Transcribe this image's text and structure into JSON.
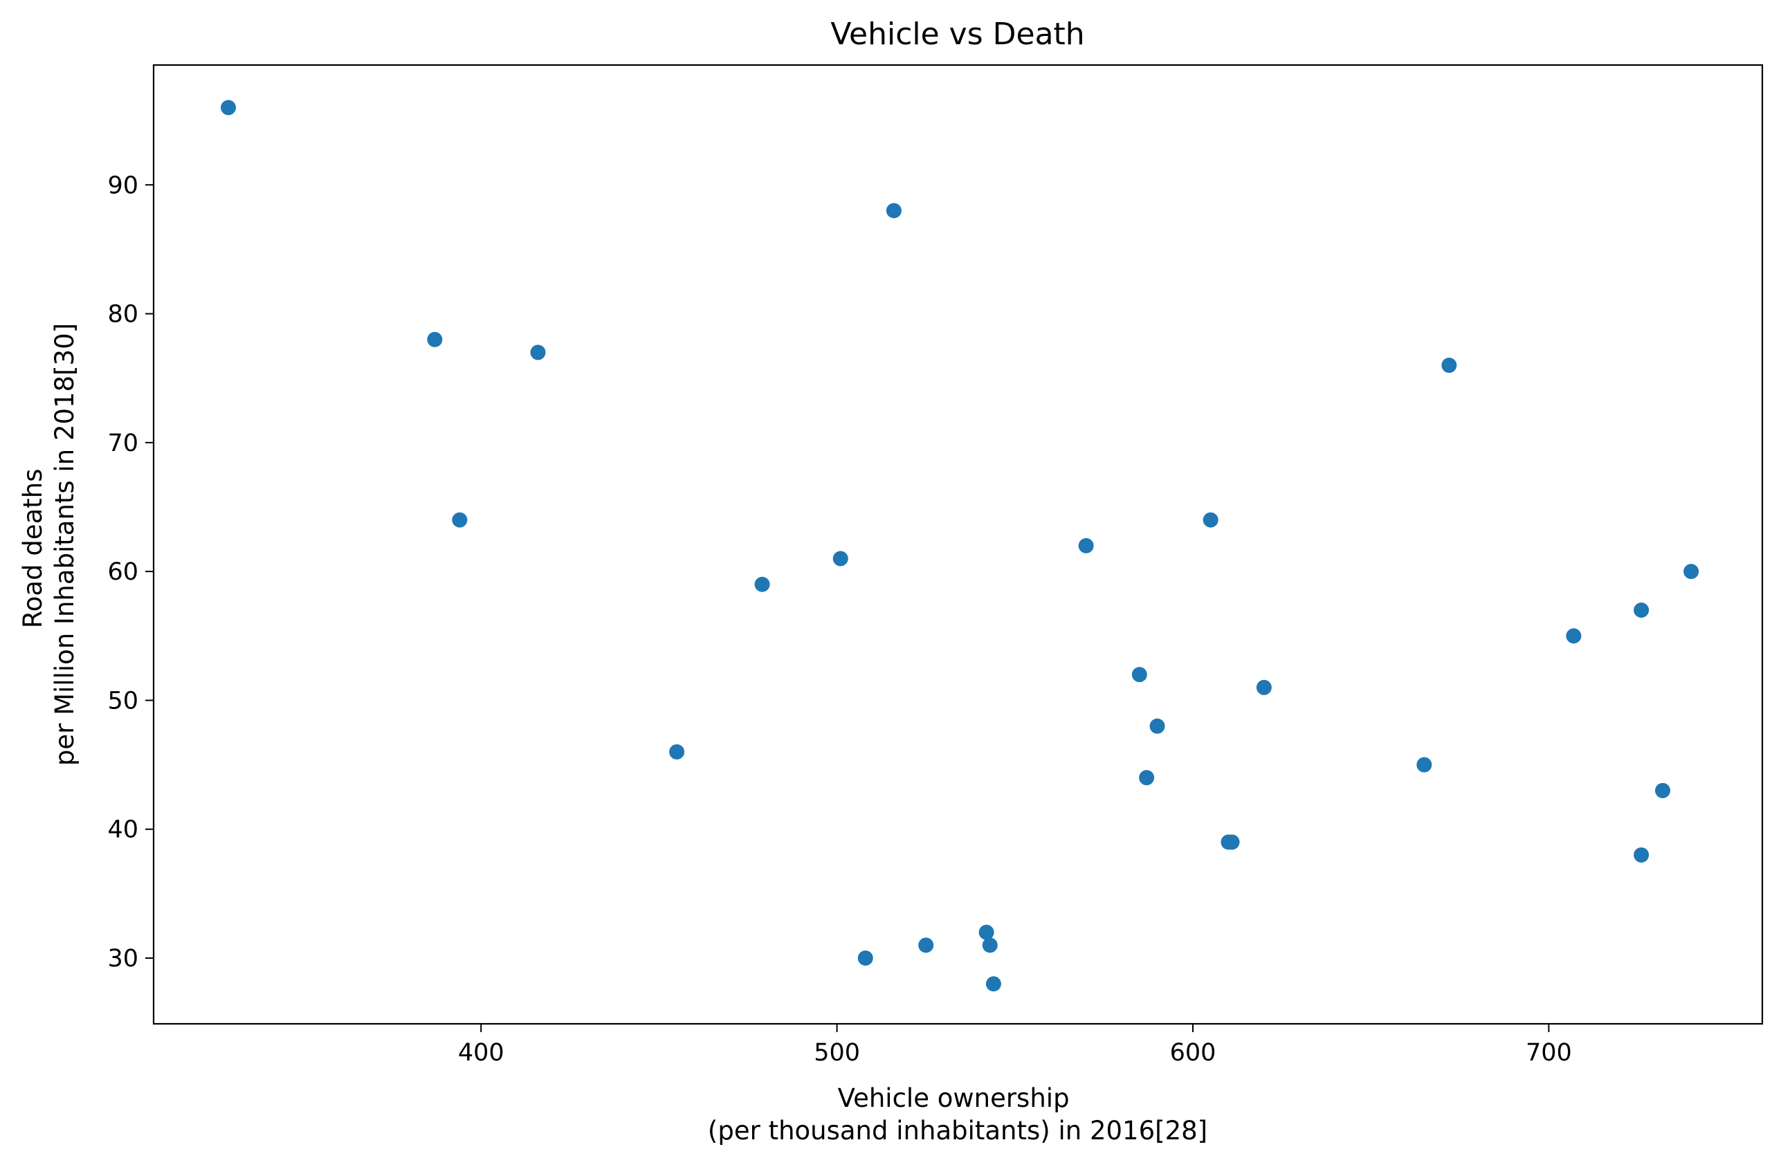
{
  "chart_data": {
    "type": "scatter",
    "title": "Vehicle vs Death",
    "xlabel_lines": [
      "Vehicle ownership",
      "(per thousand inhabitants) in 2016[28]"
    ],
    "ylabel_lines": [
      "Road deaths",
      "per Million Inhabitants in 2018[30]"
    ],
    "xlim": [
      308,
      760
    ],
    "ylim": [
      24.9,
      99.3
    ],
    "xticks": [
      400,
      500,
      600,
      700
    ],
    "yticks": [
      30,
      40,
      50,
      60,
      70,
      80,
      90
    ],
    "grid": false,
    "marker_color": "#1f77b4",
    "points": [
      {
        "x": 329,
        "y": 96
      },
      {
        "x": 387,
        "y": 78
      },
      {
        "x": 394,
        "y": 64
      },
      {
        "x": 416,
        "y": 77
      },
      {
        "x": 455,
        "y": 46
      },
      {
        "x": 479,
        "y": 59
      },
      {
        "x": 501,
        "y": 61
      },
      {
        "x": 508,
        "y": 30
      },
      {
        "x": 516,
        "y": 88
      },
      {
        "x": 525,
        "y": 31
      },
      {
        "x": 542,
        "y": 32
      },
      {
        "x": 543,
        "y": 31
      },
      {
        "x": 544,
        "y": 28
      },
      {
        "x": 570,
        "y": 62
      },
      {
        "x": 585,
        "y": 52
      },
      {
        "x": 587,
        "y": 44
      },
      {
        "x": 590,
        "y": 48
      },
      {
        "x": 605,
        "y": 64
      },
      {
        "x": 610,
        "y": 39
      },
      {
        "x": 611,
        "y": 39
      },
      {
        "x": 620,
        "y": 51
      },
      {
        "x": 665,
        "y": 45
      },
      {
        "x": 672,
        "y": 76
      },
      {
        "x": 707,
        "y": 55
      },
      {
        "x": 726,
        "y": 57
      },
      {
        "x": 726,
        "y": 38
      },
      {
        "x": 732,
        "y": 43
      },
      {
        "x": 740,
        "y": 60
      }
    ]
  }
}
